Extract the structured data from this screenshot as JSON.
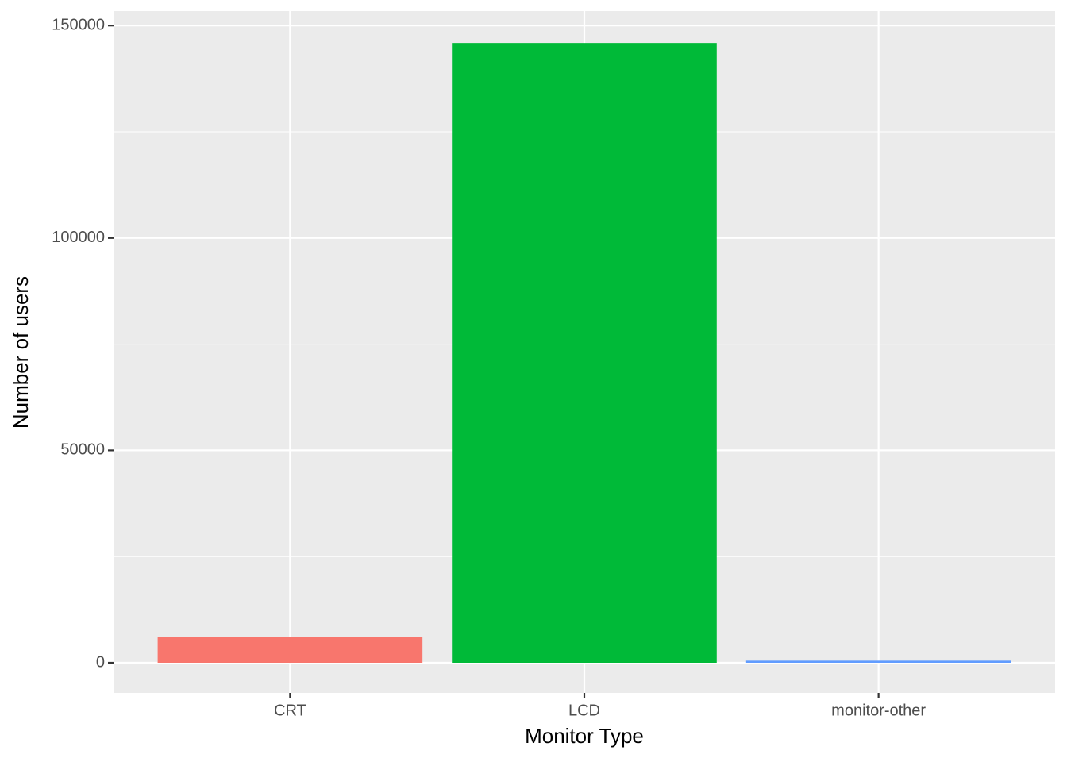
{
  "chart_data": {
    "type": "bar",
    "x_label": "Monitor Type",
    "y_label": "Number of users",
    "categories": [
      "CRT",
      "LCD",
      "monitor-other"
    ],
    "values": [
      6000,
      145900,
      500
    ],
    "colors": [
      "#F8766D",
      "#00BA38",
      "#619CFF"
    ],
    "ylim": [
      -7100,
      153400
    ],
    "yticks": [
      0,
      50000,
      100000,
      150000
    ],
    "minor_yticks": [
      25000,
      75000,
      125000
    ],
    "grid": true
  }
}
